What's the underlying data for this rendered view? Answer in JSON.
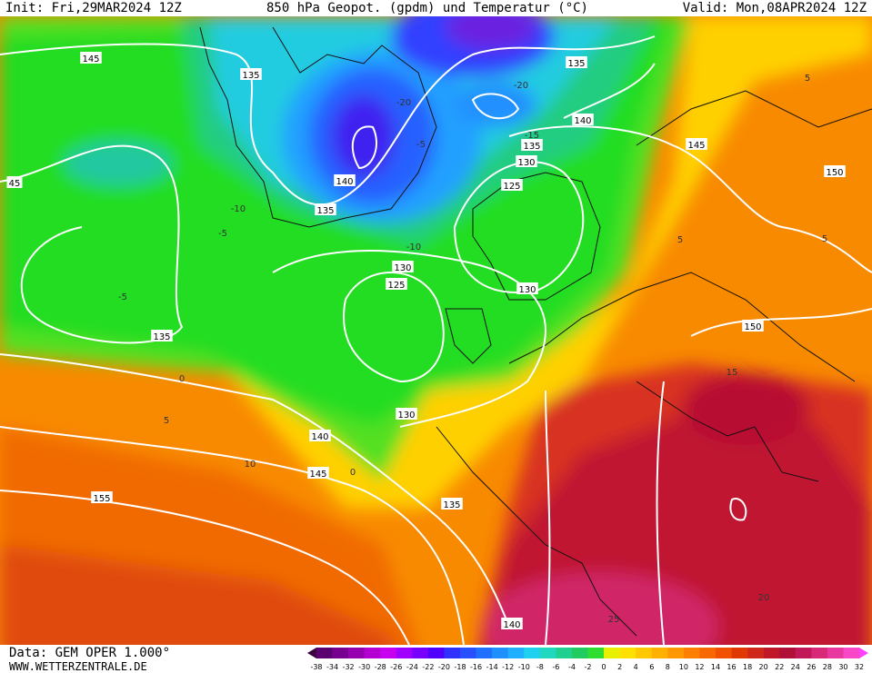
{
  "header": {
    "init": "Init: Fri,29MAR2024 12Z",
    "title": "850 hPa Geopot. (gpdm) und Temperatur (°C)",
    "valid": "Valid: Mon,08APR2024 12Z"
  },
  "footer": {
    "data_source": "Data: GEM OPER 1.000°",
    "website": "WWW.WETTERZENTRALE.DE"
  },
  "geopotential_labels": [
    "145",
    "135",
    "135",
    "140",
    "145",
    "150",
    "45",
    "140",
    "135",
    "135",
    "130",
    "125",
    "130",
    "125",
    "130",
    "150",
    "135",
    "130",
    "140",
    "145",
    "155",
    "135",
    "140"
  ],
  "temperature_labels": [
    "-20",
    "-20",
    "-15",
    "-5",
    "-10",
    "-5",
    "-5",
    "0",
    "5",
    "10",
    "0",
    "5",
    "5",
    "15",
    "20",
    "25",
    "-10",
    "5"
  ],
  "colorbar": {
    "labels": [
      -38,
      -34,
      -32,
      -30,
      -28,
      -26,
      -24,
      -22,
      -20,
      -18,
      -16,
      -14,
      -12,
      -10,
      -8,
      -6,
      -4,
      -2,
      0,
      2,
      4,
      6,
      8,
      10,
      12,
      14,
      16,
      18,
      20,
      22,
      24,
      26,
      28,
      30,
      32
    ],
    "colors": [
      "#3c0040",
      "#5a0070",
      "#780090",
      "#9600b0",
      "#b400d0",
      "#c800f0",
      "#a000ff",
      "#7800ff",
      "#5000ff",
      "#3030ff",
      "#2850ff",
      "#2070ff",
      "#2090ff",
      "#20b0ff",
      "#20d0f0",
      "#20d8c0",
      "#20d090",
      "#20cc60",
      "#30dd30",
      "#e8f000",
      "#ffe000",
      "#ffc800",
      "#ffb000",
      "#ff9800",
      "#ff8000",
      "#f86800",
      "#f05000",
      "#e03800",
      "#d02818",
      "#c01828",
      "#b01038",
      "#c01858",
      "#d82878",
      "#e838a0",
      "#f848c8",
      "#ff40ff"
    ]
  }
}
